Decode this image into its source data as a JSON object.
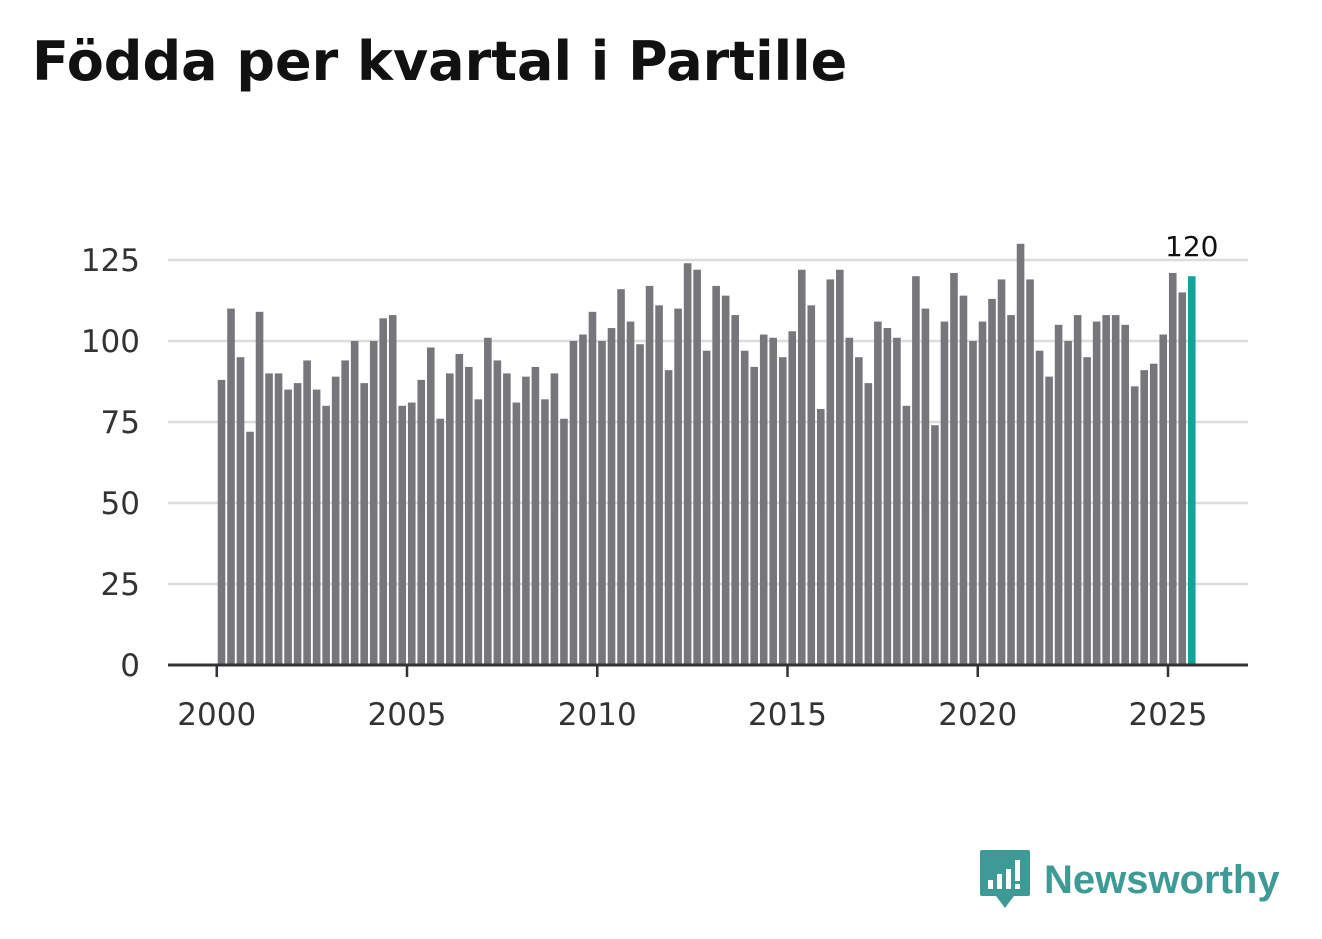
{
  "header": {
    "title": "Födda per kvartal i Partille"
  },
  "brand": {
    "name": "Newsworthy"
  },
  "colors": {
    "bar": "#77767b",
    "highlight": "#14a39a",
    "grid": "#dcdcdc",
    "axis": "#333333"
  },
  "chart_data": {
    "type": "bar",
    "title": "Födda per kvartal i Partille",
    "xlabel": "",
    "ylabel": "",
    "x_start": 2000,
    "x_ticks": [
      2000,
      2005,
      2010,
      2015,
      2020,
      2025
    ],
    "y_ticks": [
      0,
      25,
      50,
      75,
      100,
      125
    ],
    "ylim": [
      0,
      130
    ],
    "grid": true,
    "highlight_last": true,
    "last_value_label": "120",
    "values": [
      88,
      110,
      95,
      72,
      109,
      90,
      90,
      85,
      87,
      94,
      85,
      80,
      89,
      94,
      100,
      87,
      100,
      107,
      108,
      80,
      81,
      88,
      98,
      76,
      90,
      96,
      92,
      82,
      101,
      94,
      90,
      81,
      89,
      92,
      82,
      90,
      76,
      100,
      102,
      109,
      100,
      104,
      116,
      106,
      99,
      117,
      111,
      91,
      110,
      124,
      122,
      97,
      117,
      114,
      108,
      97,
      92,
      102,
      101,
      95,
      103,
      122,
      111,
      79,
      119,
      122,
      101,
      95,
      87,
      106,
      104,
      101,
      80,
      120,
      110,
      74,
      106,
      121,
      114,
      100,
      106,
      113,
      119,
      108,
      130,
      119,
      97,
      89,
      105,
      100,
      108,
      95,
      106,
      108,
      108,
      105,
      86,
      91,
      93,
      102,
      121,
      115,
      120
    ]
  }
}
